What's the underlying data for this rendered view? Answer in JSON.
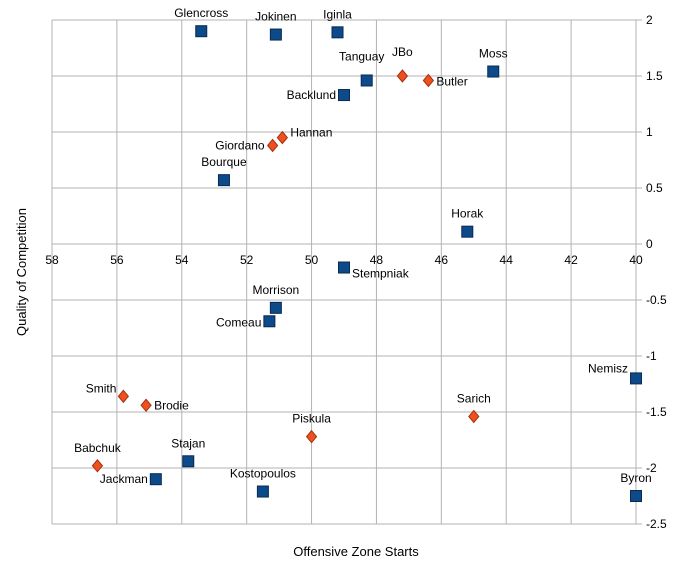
{
  "chart_data": {
    "type": "scatter",
    "title": "",
    "xlabel": "Offensive Zone Starts",
    "ylabel": "Quality of Competition",
    "xlim": [
      58,
      40
    ],
    "x_reversed": true,
    "ylim": [
      -2.5,
      2
    ],
    "grid": true,
    "legend": "none",
    "x_ticks": [
      "58",
      "56",
      "54",
      "52",
      "50",
      "48",
      "46",
      "44",
      "42",
      "40"
    ],
    "y_ticks": [
      "2",
      "1.5",
      "1",
      "0.5",
      "0",
      "-0.5",
      "-1",
      "-1.5",
      "-2",
      "-2.5"
    ],
    "series": [
      {
        "marker": "square",
        "color": "#0d4a8a",
        "points": [
          {
            "label": "Glencross",
            "x": 53.4,
            "y": 1.9
          },
          {
            "label": "Jokinen",
            "x": 51.1,
            "y": 1.87
          },
          {
            "label": "Iginla",
            "x": 49.2,
            "y": 1.89
          },
          {
            "label": "Moss",
            "x": 44.4,
            "y": 1.54
          },
          {
            "label": "Tanguay",
            "x": 48.3,
            "y": 1.46
          },
          {
            "label": "Backlund",
            "x": 49.0,
            "y": 1.33
          },
          {
            "label": "Bourque",
            "x": 52.7,
            "y": 0.57
          },
          {
            "label": "Horak",
            "x": 45.2,
            "y": 0.11
          },
          {
            "label": "Stempniak",
            "x": 49.0,
            "y": -0.21
          },
          {
            "label": "Morrison",
            "x": 51.1,
            "y": -0.57
          },
          {
            "label": "Comeau",
            "x": 51.3,
            "y": -0.69
          },
          {
            "label": "Nemisz",
            "x": 40.0,
            "y": -1.2
          },
          {
            "label": "Stajan",
            "x": 53.8,
            "y": -1.94
          },
          {
            "label": "Jackman",
            "x": 54.8,
            "y": -2.1
          },
          {
            "label": "Kostopoulos",
            "x": 51.5,
            "y": -2.21
          },
          {
            "label": "Byron",
            "x": 40.0,
            "y": -2.25
          }
        ]
      },
      {
        "marker": "diamond",
        "color": "#f0501e",
        "points": [
          {
            "label": "JBo",
            "x": 47.2,
            "y": 1.5
          },
          {
            "label": "Butler",
            "x": 46.4,
            "y": 1.46
          },
          {
            "label": "Hannan",
            "x": 50.9,
            "y": 0.95
          },
          {
            "label": "Giordano",
            "x": 51.2,
            "y": 0.88
          },
          {
            "label": "Smith",
            "x": 55.8,
            "y": -1.36
          },
          {
            "label": "Brodie",
            "x": 55.1,
            "y": -1.44
          },
          {
            "label": "Piskula",
            "x": 50.0,
            "y": -1.72
          },
          {
            "label": "Sarich",
            "x": 45.0,
            "y": -1.54
          },
          {
            "label": "Babchuk",
            "x": 56.6,
            "y": -1.98
          }
        ]
      }
    ]
  }
}
